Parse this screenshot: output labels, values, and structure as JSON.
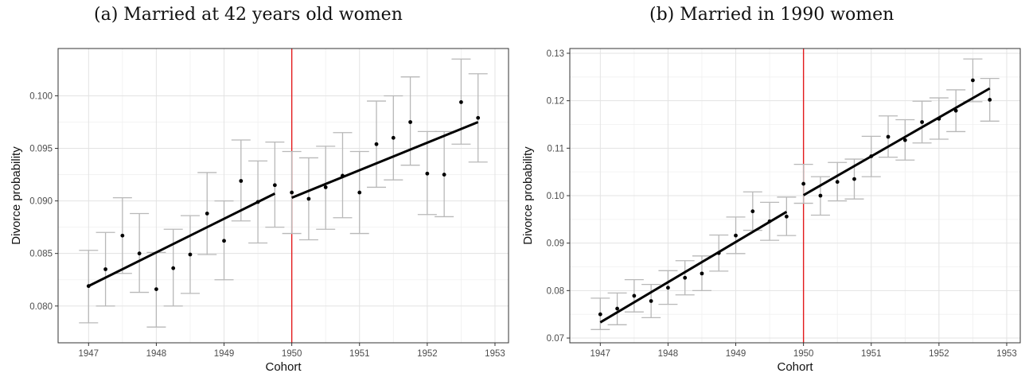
{
  "chart_data": [
    {
      "type": "scatter",
      "panel_title": "(a) Married at 42 years old women",
      "xlabel": "Cohort",
      "ylabel": "Divorce probability",
      "xlim": [
        1946.55,
        1953.2
      ],
      "ylim": [
        0.0765,
        0.1045
      ],
      "x_ticks": [
        1947,
        1948,
        1949,
        1950,
        1951,
        1952,
        1953
      ],
      "x_tick_labels": [
        "1947",
        "1948",
        "1949",
        "1950",
        "1951",
        "1952",
        "1953"
      ],
      "y_ticks": [
        0.08,
        0.085,
        0.09,
        0.095,
        0.1
      ],
      "y_tick_labels": [
        "0.080",
        "0.085",
        "0.090",
        "0.095",
        "0.100"
      ],
      "grid": true,
      "cutoff_x": 1950,
      "cutoff_color": "#e31a1c",
      "points": [
        {
          "x": 1947.0,
          "y": 0.0819,
          "lo": 0.0784,
          "hi": 0.0853
        },
        {
          "x": 1947.25,
          "y": 0.0835,
          "lo": 0.08,
          "hi": 0.087
        },
        {
          "x": 1947.5,
          "y": 0.0867,
          "lo": 0.0831,
          "hi": 0.0903
        },
        {
          "x": 1947.75,
          "y": 0.085,
          "lo": 0.0813,
          "hi": 0.0888
        },
        {
          "x": 1948.0,
          "y": 0.0816,
          "lo": 0.078,
          "hi": 0.0851
        },
        {
          "x": 1948.25,
          "y": 0.0836,
          "lo": 0.08,
          "hi": 0.0873
        },
        {
          "x": 1948.5,
          "y": 0.0849,
          "lo": 0.0812,
          "hi": 0.0886
        },
        {
          "x": 1948.75,
          "y": 0.0888,
          "lo": 0.0849,
          "hi": 0.0927
        },
        {
          "x": 1949.0,
          "y": 0.0862,
          "lo": 0.0825,
          "hi": 0.09
        },
        {
          "x": 1949.25,
          "y": 0.0919,
          "lo": 0.0881,
          "hi": 0.0958
        },
        {
          "x": 1949.5,
          "y": 0.0899,
          "lo": 0.086,
          "hi": 0.0938
        },
        {
          "x": 1949.75,
          "y": 0.0915,
          "lo": 0.0875,
          "hi": 0.0956
        },
        {
          "x": 1950.0,
          "y": 0.0908,
          "lo": 0.0869,
          "hi": 0.0947
        },
        {
          "x": 1950.25,
          "y": 0.0902,
          "lo": 0.0863,
          "hi": 0.0941
        },
        {
          "x": 1950.5,
          "y": 0.0913,
          "lo": 0.0873,
          "hi": 0.0952
        },
        {
          "x": 1950.75,
          "y": 0.0924,
          "lo": 0.0884,
          "hi": 0.0965
        },
        {
          "x": 1951.0,
          "y": 0.0908,
          "lo": 0.0869,
          "hi": 0.0947
        },
        {
          "x": 1951.25,
          "y": 0.0954,
          "lo": 0.0913,
          "hi": 0.0995
        },
        {
          "x": 1951.5,
          "y": 0.096,
          "lo": 0.092,
          "hi": 0.1
        },
        {
          "x": 1951.75,
          "y": 0.0975,
          "lo": 0.0934,
          "hi": 0.1018
        },
        {
          "x": 1952.0,
          "y": 0.0926,
          "lo": 0.0887,
          "hi": 0.0966
        },
        {
          "x": 1952.25,
          "y": 0.0925,
          "lo": 0.0885,
          "hi": 0.0966
        },
        {
          "x": 1952.5,
          "y": 0.0994,
          "lo": 0.0954,
          "hi": 0.1035
        },
        {
          "x": 1952.75,
          "y": 0.0979,
          "lo": 0.0937,
          "hi": 0.1021
        }
      ],
      "fit_lines": [
        {
          "x": [
            1947.0,
            1949.75
          ],
          "y": [
            0.0819,
            0.0907
          ]
        },
        {
          "x": [
            1950.0,
            1952.75
          ],
          "y": [
            0.0903,
            0.0975
          ]
        }
      ]
    },
    {
      "type": "scatter",
      "panel_title": "(b) Married in 1990 women",
      "xlabel": "Cohort",
      "ylabel": "Divorce probability",
      "xlim": [
        1946.55,
        1953.2
      ],
      "ylim": [
        0.069,
        0.131
      ],
      "x_ticks": [
        1947,
        1948,
        1949,
        1950,
        1951,
        1952,
        1953
      ],
      "x_tick_labels": [
        "1947",
        "1948",
        "1949",
        "1950",
        "1951",
        "1952",
        "1953"
      ],
      "y_ticks": [
        0.07,
        0.08,
        0.09,
        0.1,
        0.11,
        0.12,
        0.13
      ],
      "y_tick_labels": [
        "0.07",
        "0.08",
        "0.09",
        "0.10",
        "0.11",
        "0.12",
        "0.13"
      ],
      "grid": true,
      "cutoff_x": 1950,
      "cutoff_color": "#e31a1c",
      "points": [
        {
          "x": 1947.0,
          "y": 0.075,
          "lo": 0.0718,
          "hi": 0.0784
        },
        {
          "x": 1947.25,
          "y": 0.0762,
          "lo": 0.0728,
          "hi": 0.0795
        },
        {
          "x": 1947.5,
          "y": 0.0789,
          "lo": 0.0755,
          "hi": 0.0823
        },
        {
          "x": 1947.75,
          "y": 0.0778,
          "lo": 0.0743,
          "hi": 0.0813
        },
        {
          "x": 1948.0,
          "y": 0.0806,
          "lo": 0.0771,
          "hi": 0.0842
        },
        {
          "x": 1948.25,
          "y": 0.0827,
          "lo": 0.0791,
          "hi": 0.0863
        },
        {
          "x": 1948.5,
          "y": 0.0836,
          "lo": 0.08,
          "hi": 0.0873
        },
        {
          "x": 1948.75,
          "y": 0.0879,
          "lo": 0.0841,
          "hi": 0.0917
        },
        {
          "x": 1949.0,
          "y": 0.0916,
          "lo": 0.0878,
          "hi": 0.0955
        },
        {
          "x": 1949.25,
          "y": 0.0967,
          "lo": 0.0927,
          "hi": 0.1008
        },
        {
          "x": 1949.5,
          "y": 0.0946,
          "lo": 0.0906,
          "hi": 0.0986
        },
        {
          "x": 1949.75,
          "y": 0.0956,
          "lo": 0.0916,
          "hi": 0.0997
        },
        {
          "x": 1950.0,
          "y": 0.1025,
          "lo": 0.0984,
          "hi": 0.1066
        },
        {
          "x": 1950.25,
          "y": 0.1,
          "lo": 0.0959,
          "hi": 0.104
        },
        {
          "x": 1950.5,
          "y": 0.1029,
          "lo": 0.0989,
          "hi": 0.107
        },
        {
          "x": 1950.75,
          "y": 0.1035,
          "lo": 0.0993,
          "hi": 0.1077
        },
        {
          "x": 1951.0,
          "y": 0.1083,
          "lo": 0.104,
          "hi": 0.1125
        },
        {
          "x": 1951.25,
          "y": 0.1124,
          "lo": 0.1081,
          "hi": 0.1168
        },
        {
          "x": 1951.5,
          "y": 0.1117,
          "lo": 0.1075,
          "hi": 0.116
        },
        {
          "x": 1951.75,
          "y": 0.1155,
          "lo": 0.1111,
          "hi": 0.1199
        },
        {
          "x": 1952.0,
          "y": 0.1162,
          "lo": 0.1119,
          "hi": 0.1206
        },
        {
          "x": 1952.25,
          "y": 0.1179,
          "lo": 0.1135,
          "hi": 0.1223
        },
        {
          "x": 1952.5,
          "y": 0.1243,
          "lo": 0.1198,
          "hi": 0.1288
        },
        {
          "x": 1952.75,
          "y": 0.1202,
          "lo": 0.1157,
          "hi": 0.1247
        }
      ],
      "fit_lines": [
        {
          "x": [
            1947.0,
            1949.75
          ],
          "y": [
            0.0733,
            0.0966
          ]
        },
        {
          "x": [
            1950.0,
            1952.75
          ],
          "y": [
            0.1001,
            0.1226
          ]
        }
      ]
    }
  ]
}
